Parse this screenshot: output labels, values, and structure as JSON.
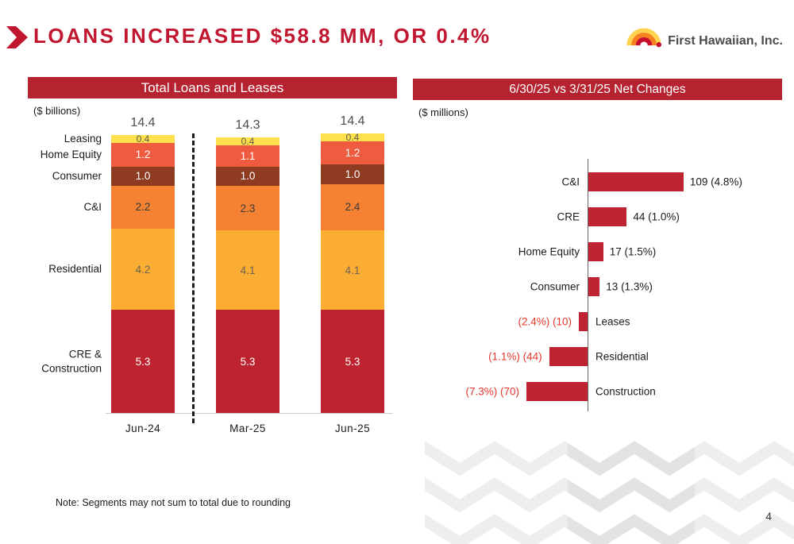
{
  "slide": {
    "title": "LOANS INCREASED $58.8 MM, OR 0.4%",
    "logo_text": "First Hawaiian, Inc.",
    "note": "Note:  Segments may not sum to total due to rounding",
    "page_number": "4"
  },
  "colors": {
    "title_red": "#C01630",
    "header_bar_red": "#B4232F",
    "bar_crimson": "#BE2430",
    "negative_label_red": "#E5372B",
    "logo_text_gray": "#4B4B4D",
    "chevron_pattern_light": "#EEEEEE",
    "chevron_pattern_dark": "#E3E3E3"
  },
  "chart_data": [
    {
      "type": "bar",
      "variant": "stacked-column",
      "title": "Total Loans and Leases",
      "units_label": "($ billions)",
      "categories": [
        "Jun-24",
        "Mar-25",
        "Jun-25"
      ],
      "totals": [
        "14.4",
        "14.3",
        "14.4"
      ],
      "ylim": [
        0,
        14.4
      ],
      "grid": false,
      "series": [
        {
          "name": "CRE & Construction",
          "color": "#BE2430",
          "text_color": "#FFFFFF",
          "values": [
            5.3,
            5.3,
            5.3
          ]
        },
        {
          "name": "Residential",
          "color": "#FBAE33",
          "text_color": "#6E6254",
          "values": [
            4.2,
            4.1,
            4.1
          ]
        },
        {
          "name": "C&I",
          "color": "#F58233",
          "text_color": "#3A3A3A",
          "values": [
            2.2,
            2.3,
            2.4
          ]
        },
        {
          "name": "Consumer",
          "color": "#8E3B22",
          "text_color": "#FFFFFF",
          "values": [
            1.0,
            1.0,
            1.0
          ]
        },
        {
          "name": "Home Equity",
          "color": "#EF5B3F",
          "text_color": "#FFFFFF",
          "values": [
            1.2,
            1.1,
            1.2
          ]
        },
        {
          "name": "Leasing",
          "color": "#FFE14D",
          "text_color": "#5F5B4E",
          "values": [
            0.4,
            0.4,
            0.4
          ]
        }
      ]
    },
    {
      "type": "bar",
      "variant": "horizontal-diverging",
      "title": "6/30/25 vs 3/31/25 Net Changes",
      "units_label": "($ millions)",
      "categories": [
        "C&I",
        "CRE",
        "Home Equity",
        "Consumer",
        "Leases",
        "Residential",
        "Construction"
      ],
      "values": [
        109,
        44,
        17,
        13,
        -10,
        -44,
        -70
      ],
      "labels": [
        "109 (4.8%)",
        "44 (1.0%)",
        "17 (1.5%)",
        "13 (1.3%)",
        "(2.4%) (10)",
        "(1.1%) (44)",
        "(7.3%) (70)"
      ],
      "bar_color": "#BE2430",
      "positive_label_color": "#1A1A1A",
      "negative_label_color": "#E5372B"
    }
  ]
}
